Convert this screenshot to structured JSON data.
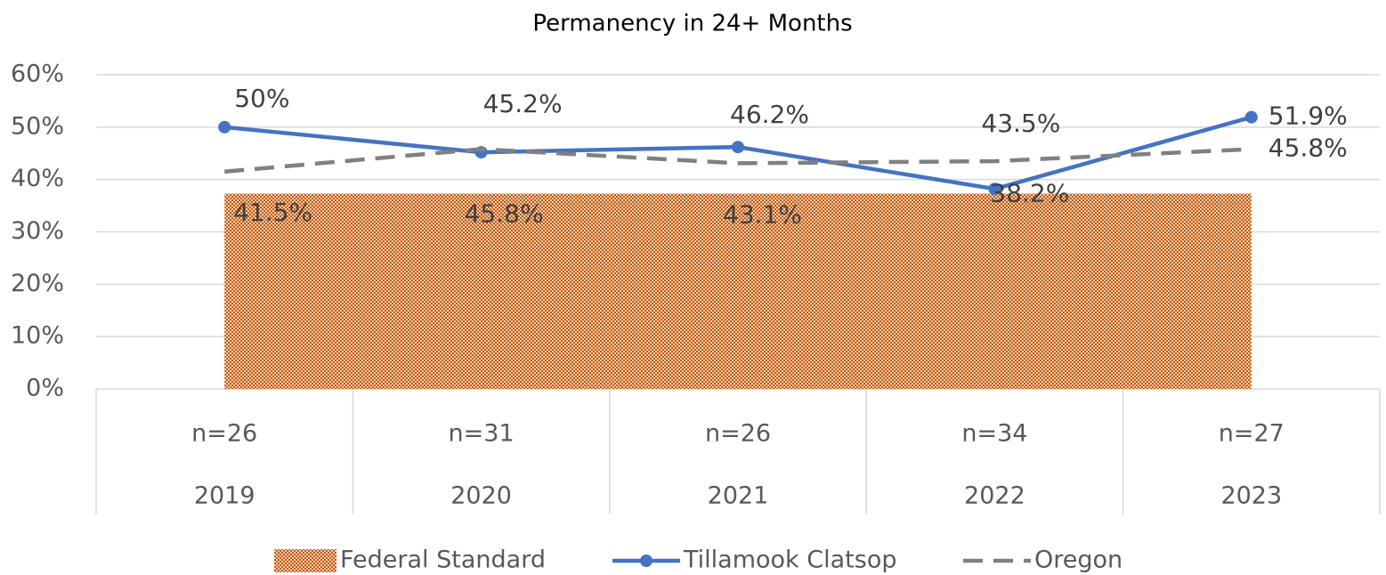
{
  "chart_data": {
    "type": "line",
    "title": "Permanency in 24+ Months",
    "categories": [
      "2019",
      "2020",
      "2021",
      "2022",
      "2023"
    ],
    "sublabels": [
      "n=26",
      "n=31",
      "n=26",
      "n=34",
      "n=27"
    ],
    "ylim": [
      0,
      60
    ],
    "yticks": [
      {
        "value": 0,
        "label": "0%"
      },
      {
        "value": 10,
        "label": "10%"
      },
      {
        "value": 20,
        "label": "20%"
      },
      {
        "value": 30,
        "label": "30%"
      },
      {
        "value": 40,
        "label": "40%"
      },
      {
        "value": 50,
        "label": "50%"
      },
      {
        "value": 60,
        "label": "60%"
      }
    ],
    "grid": true,
    "legend": "bottom",
    "series": [
      {
        "name": "Federal Standard",
        "type": "area",
        "color": "#c55a11",
        "values": [
          37.3,
          37.3,
          37.3,
          37.3,
          37.3
        ]
      },
      {
        "name": "Tillamook Clatsop",
        "type": "line",
        "color": "#4472c4",
        "style": "solid",
        "markers": true,
        "values": [
          50,
          45.2,
          46.2,
          38.2,
          51.9
        ],
        "value_labels": [
          "50%",
          "45.2%",
          "46.2%",
          "38.2%",
          "51.9%"
        ]
      },
      {
        "name": "Oregon",
        "type": "line",
        "color": "#808080",
        "style": "dashed",
        "markers": false,
        "values": [
          41.5,
          45.8,
          43.1,
          43.5,
          45.8
        ],
        "value_labels": [
          "41.5%",
          "45.8%",
          "43.1%",
          "43.5%",
          "45.8%"
        ]
      }
    ]
  }
}
